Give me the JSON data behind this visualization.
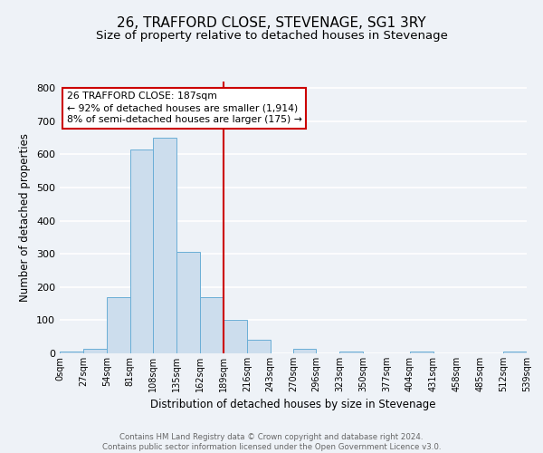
{
  "title": "26, TRAFFORD CLOSE, STEVENAGE, SG1 3RY",
  "subtitle": "Size of property relative to detached houses in Stevenage",
  "xlabel": "Distribution of detached houses by size in Stevenage",
  "ylabel": "Number of detached properties",
  "bin_edges": [
    0,
    27,
    54,
    81,
    108,
    135,
    162,
    189,
    216,
    243,
    270,
    296,
    323,
    350,
    377,
    404,
    431,
    458,
    485,
    512,
    539
  ],
  "bar_heights": [
    5,
    13,
    170,
    615,
    650,
    305,
    170,
    100,
    40,
    0,
    13,
    0,
    5,
    0,
    0,
    5,
    0,
    0,
    0,
    5
  ],
  "bar_color": "#ccdded",
  "bar_edgecolor": "#6aaed6",
  "vline_x": 189,
  "vline_color": "#cc0000",
  "annotation_title": "26 TRAFFORD CLOSE: 187sqm",
  "annotation_line1": "← 92% of detached houses are smaller (1,914)",
  "annotation_line2": "8% of semi-detached houses are larger (175) →",
  "annotation_box_edgecolor": "#cc0000",
  "ylim": [
    0,
    820
  ],
  "yticks": [
    0,
    100,
    200,
    300,
    400,
    500,
    600,
    700,
    800
  ],
  "tick_labels": [
    "0sqm",
    "27sqm",
    "54sqm",
    "81sqm",
    "108sqm",
    "135sqm",
    "162sqm",
    "189sqm",
    "216sqm",
    "243sqm",
    "270sqm",
    "296sqm",
    "323sqm",
    "350sqm",
    "377sqm",
    "404sqm",
    "431sqm",
    "458sqm",
    "485sqm",
    "512sqm",
    "539sqm"
  ],
  "footer_line1": "Contains HM Land Registry data © Crown copyright and database right 2024.",
  "footer_line2": "Contains public sector information licensed under the Open Government Licence v3.0.",
  "background_color": "#eef2f7",
  "plot_background": "#eef2f7",
  "grid_color": "#ffffff",
  "title_fontsize": 11,
  "subtitle_fontsize": 9.5
}
